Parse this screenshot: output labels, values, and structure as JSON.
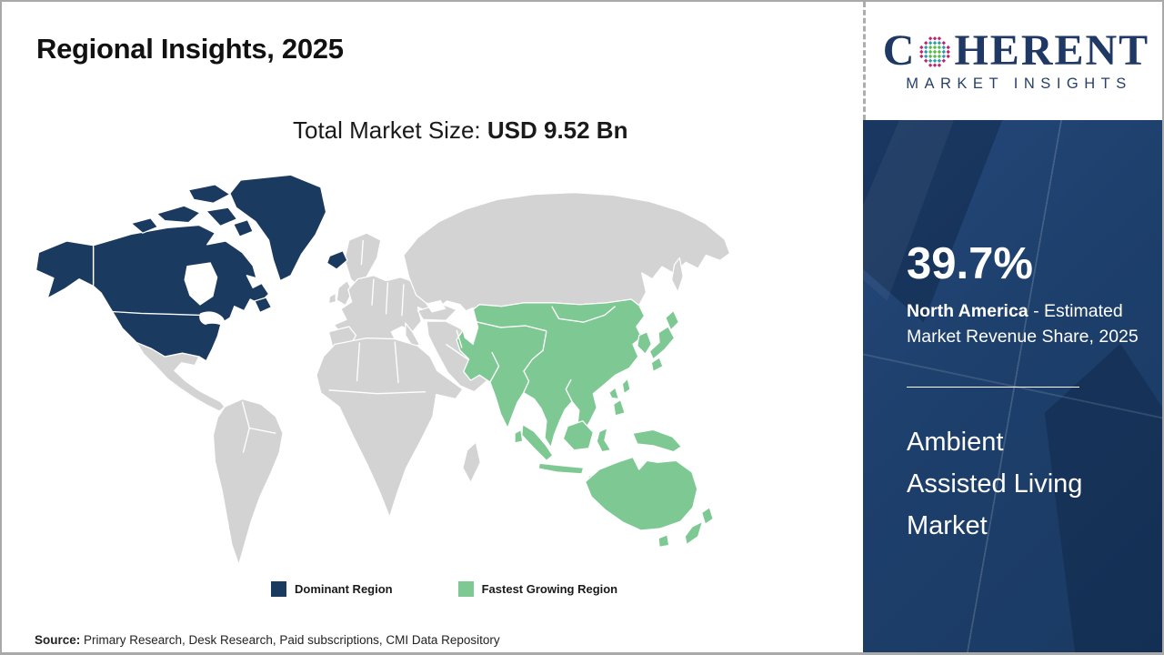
{
  "header": {
    "title": "Regional Insights, 2025",
    "subtitle_label": "Total Market Size: ",
    "subtitle_value": "USD 9.52 Bn"
  },
  "logo": {
    "brand_c": "C",
    "brand_rest": "HERENT",
    "tagline": "MARKET INSIGHTS",
    "text_color": "#1f3864",
    "globe_colors": {
      "outer": "#c0266d",
      "mid": "#2f9ab3",
      "core": "#5abc49"
    }
  },
  "map": {
    "colors": {
      "dominant": "#1b3a5f",
      "fastest": "#7ec993",
      "other": "#d3d3d3",
      "border": "#ffffff"
    },
    "legend": [
      {
        "label": "Dominant Region",
        "color": "#1b3a5f"
      },
      {
        "label": "Fastest Growing Region",
        "color": "#7ec993"
      }
    ]
  },
  "sidebar": {
    "background": "#1d3f6b",
    "share_value": "39.7%",
    "share_region": "North America",
    "share_desc_rest": " - Estimated Market Revenue Share, 2025",
    "market_name": "Ambient Assisted Living Market"
  },
  "footer": {
    "source_label": "Source:",
    "source_text": " Primary Research, Desk Research, Paid subscriptions, CMI Data Repository"
  },
  "chart_data": {
    "type": "choropleth-map",
    "title": "Regional Insights, 2025",
    "year": 2025,
    "market": "Ambient Assisted Living Market",
    "total_market_size": "USD 9.52 Bn",
    "regions": [
      {
        "name": "North America",
        "role": "Dominant Region",
        "estimated_market_revenue_share_pct": 39.7,
        "color": "#1b3a5f"
      },
      {
        "name": "Asia Pacific",
        "role": "Fastest Growing Region",
        "color": "#7ec993"
      }
    ],
    "legend_entries": [
      "Dominant Region",
      "Fastest Growing Region"
    ],
    "legend_position": "bottom-center",
    "source": "Primary Research, Desk Research, Paid subscriptions, CMI Data Repository"
  }
}
